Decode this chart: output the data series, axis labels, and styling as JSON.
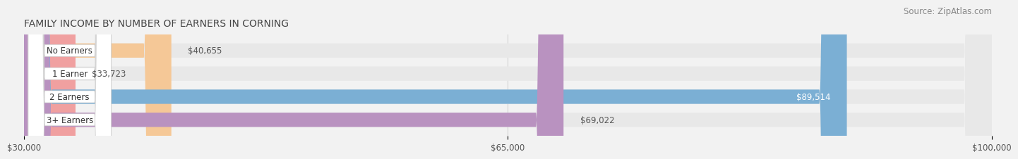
{
  "title": "FAMILY INCOME BY NUMBER OF EARNERS IN CORNING",
  "source": "Source: ZipAtlas.com",
  "categories": [
    "No Earners",
    "1 Earner",
    "2 Earners",
    "3+ Earners"
  ],
  "values": [
    40655,
    33723,
    89514,
    69022
  ],
  "bar_colors": [
    "#f5c897",
    "#f0a0a0",
    "#7bafd4",
    "#b992c0"
  ],
  "xmin": 30000,
  "xmax": 100000,
  "xticks": [
    30000,
    65000,
    100000
  ],
  "xtick_labels": [
    "$30,000",
    "$65,000",
    "$100,000"
  ],
  "value_labels": [
    "$40,655",
    "$33,723",
    "$89,514",
    "$69,022"
  ],
  "bar_height": 0.62,
  "background_color": "#f2f2f2",
  "bar_bg_color": "#e8e8e8",
  "title_fontsize": 10,
  "source_fontsize": 8.5,
  "label_fontsize": 8.5,
  "value_fontsize": 8.5,
  "tick_fontsize": 8.5
}
